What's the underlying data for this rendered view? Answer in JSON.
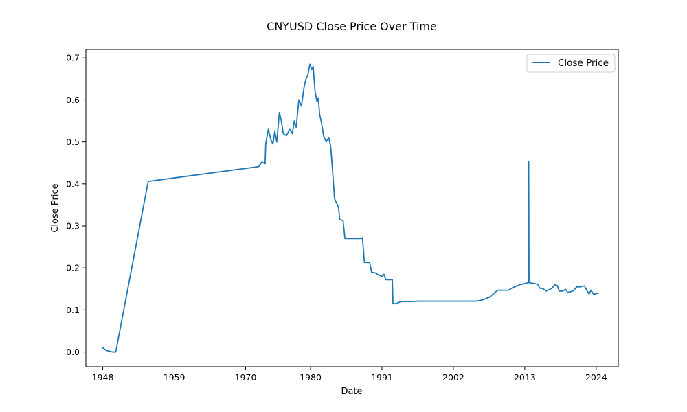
{
  "chart_data": {
    "type": "line",
    "title": "CNYUSD Close Price Over Time",
    "xlabel": "Date",
    "ylabel": "Close Price",
    "xlim": [
      1945.4,
      2027.4
    ],
    "ylim": [
      -0.035,
      0.72
    ],
    "x_ticks": [
      1948,
      1959,
      1970,
      1980,
      1991,
      2002,
      2013,
      2024
    ],
    "y_ticks": [
      0.0,
      0.1,
      0.2,
      0.3,
      0.4,
      0.5,
      0.6,
      0.7
    ],
    "y_tick_labels": [
      "0.0",
      "0.1",
      "0.2",
      "0.3",
      "0.4",
      "0.5",
      "0.6",
      "0.7"
    ],
    "grid": false,
    "legend": {
      "position": "top-right",
      "entries": [
        "Close Price"
      ]
    },
    "series": [
      {
        "name": "Close Price",
        "color": "#1f77b4",
        "points": [
          [
            1948.0,
            0.01
          ],
          [
            1948.5,
            0.004
          ],
          [
            1949.5,
            0.0
          ],
          [
            1950.0,
            0.0
          ],
          [
            1955.0,
            0.406
          ],
          [
            1972.0,
            0.441
          ],
          [
            1972.5,
            0.452
          ],
          [
            1973.0,
            0.448
          ],
          [
            1973.1,
            0.495
          ],
          [
            1973.5,
            0.53
          ],
          [
            1973.9,
            0.505
          ],
          [
            1974.2,
            0.495
          ],
          [
            1974.5,
            0.525
          ],
          [
            1974.8,
            0.5
          ],
          [
            1975.2,
            0.57
          ],
          [
            1975.5,
            0.55
          ],
          [
            1975.8,
            0.52
          ],
          [
            1976.3,
            0.515
          ],
          [
            1976.8,
            0.53
          ],
          [
            1977.2,
            0.52
          ],
          [
            1977.5,
            0.55
          ],
          [
            1977.8,
            0.535
          ],
          [
            1978.2,
            0.6
          ],
          [
            1978.6,
            0.585
          ],
          [
            1979.0,
            0.63
          ],
          [
            1979.3,
            0.65
          ],
          [
            1979.6,
            0.66
          ],
          [
            1979.9,
            0.685
          ],
          [
            1980.2,
            0.672
          ],
          [
            1980.4,
            0.68
          ],
          [
            1980.7,
            0.62
          ],
          [
            1981.0,
            0.595
          ],
          [
            1981.2,
            0.605
          ],
          [
            1981.4,
            0.565
          ],
          [
            1981.7,
            0.545
          ],
          [
            1982.0,
            0.515
          ],
          [
            1982.4,
            0.5
          ],
          [
            1982.8,
            0.51
          ],
          [
            1983.1,
            0.49
          ],
          [
            1983.4,
            0.43
          ],
          [
            1983.7,
            0.365
          ],
          [
            1984.0,
            0.355
          ],
          [
            1984.3,
            0.345
          ],
          [
            1984.5,
            0.315
          ],
          [
            1985.0,
            0.313
          ],
          [
            1985.3,
            0.27
          ],
          [
            1987.8,
            0.27
          ],
          [
            1988.0,
            0.272
          ],
          [
            1988.3,
            0.213
          ],
          [
            1989.1,
            0.213
          ],
          [
            1989.4,
            0.19
          ],
          [
            1990.0,
            0.188
          ],
          [
            1990.5,
            0.183
          ],
          [
            1991.0,
            0.18
          ],
          [
            1991.3,
            0.185
          ],
          [
            1991.6,
            0.172
          ],
          [
            1992.6,
            0.172
          ],
          [
            1992.7,
            0.115
          ],
          [
            1993.2,
            0.115
          ],
          [
            1993.9,
            0.12
          ],
          [
            1995.5,
            0.12
          ],
          [
            1996.5,
            0.121
          ],
          [
            2005.6,
            0.121
          ],
          [
            2006.5,
            0.124
          ],
          [
            2007.5,
            0.13
          ],
          [
            2008.3,
            0.14
          ],
          [
            2008.8,
            0.147
          ],
          [
            2009.5,
            0.147
          ],
          [
            2010.5,
            0.147
          ],
          [
            2011.0,
            0.152
          ],
          [
            2011.6,
            0.156
          ],
          [
            2012.2,
            0.16
          ],
          [
            2012.8,
            0.162
          ],
          [
            2013.3,
            0.164
          ],
          [
            2013.55,
            0.165
          ],
          [
            2013.6,
            0.454
          ],
          [
            2013.65,
            0.165
          ],
          [
            2014.0,
            0.164
          ],
          [
            2014.5,
            0.163
          ],
          [
            2015.0,
            0.161
          ],
          [
            2015.3,
            0.152
          ],
          [
            2015.8,
            0.151
          ],
          [
            2016.3,
            0.145
          ],
          [
            2016.7,
            0.148
          ],
          [
            2017.2,
            0.152
          ],
          [
            2017.6,
            0.16
          ],
          [
            2018.0,
            0.158
          ],
          [
            2018.3,
            0.145
          ],
          [
            2018.8,
            0.145
          ],
          [
            2019.3,
            0.149
          ],
          [
            2019.6,
            0.142
          ],
          [
            2020.0,
            0.143
          ],
          [
            2020.5,
            0.146
          ],
          [
            2021.0,
            0.155
          ],
          [
            2021.5,
            0.155
          ],
          [
            2022.0,
            0.157
          ],
          [
            2022.2,
            0.157
          ],
          [
            2022.5,
            0.148
          ],
          [
            2022.9,
            0.138
          ],
          [
            2023.2,
            0.147
          ],
          [
            2023.6,
            0.137
          ],
          [
            2024.0,
            0.139
          ],
          [
            2024.3,
            0.14
          ]
        ]
      }
    ]
  }
}
